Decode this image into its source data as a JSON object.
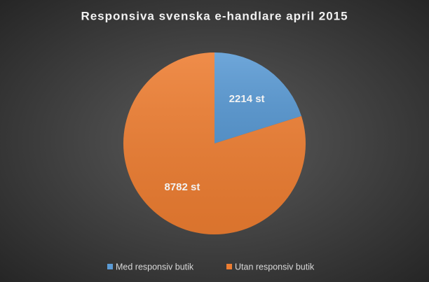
{
  "chart_data": {
    "type": "pie",
    "title": "Responsiva svenska e-handlare april 2015",
    "categories": [
      "Med responsiv butik",
      "Utan responsiv butik"
    ],
    "values": [
      2214,
      8782
    ],
    "value_labels": [
      "2214 st",
      "8782 st"
    ],
    "colors": [
      "#5b9bd5",
      "#ed7d31"
    ],
    "legend": "bottom"
  }
}
